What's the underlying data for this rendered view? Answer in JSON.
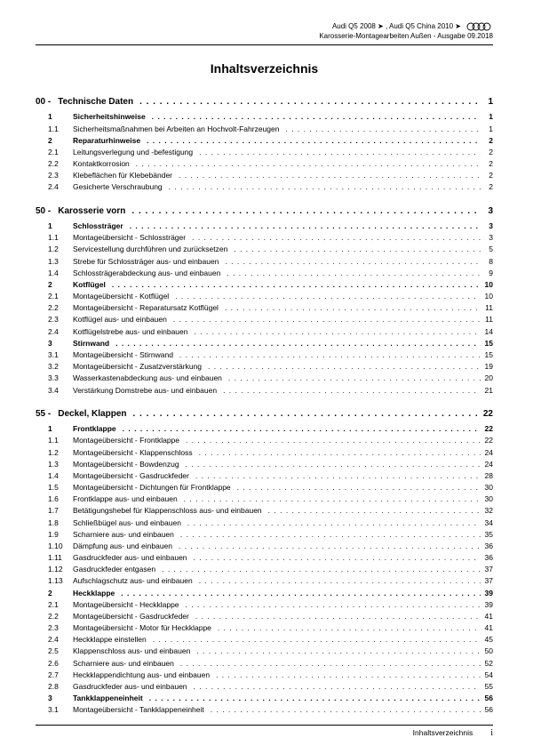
{
  "header": {
    "line1_left": "Audi Q5 2008 ➤ , Audi Q5 China 2010 ➤",
    "line2": "Karosserie-Montagearbeiten Außen - Ausgabe 09.2018"
  },
  "title": "Inhaltsverzeichnis",
  "sections": [
    {
      "num": "00 -",
      "label": "Technische Daten",
      "page": "1",
      "items": [
        {
          "num": "1",
          "label": "Sicherheitshinweise",
          "page": "1",
          "bold": true
        },
        {
          "num": "1.1",
          "label": "Sicherheitsmaßnahmen bei Arbeiten an Hochvolt-Fahrzeugen",
          "page": "1"
        },
        {
          "num": "2",
          "label": "Reparaturhinweise",
          "page": "2",
          "bold": true
        },
        {
          "num": "2.1",
          "label": "Leitungsverlegung und -befestigung",
          "page": "2"
        },
        {
          "num": "2.2",
          "label": "Kontaktkorrosion",
          "page": "2"
        },
        {
          "num": "2.3",
          "label": "Klebeflächen für Klebebänder",
          "page": "2"
        },
        {
          "num": "2.4",
          "label": "Gesicherte Verschraubung",
          "page": "2"
        }
      ]
    },
    {
      "num": "50 -",
      "label": "Karosserie vorn",
      "page": "3",
      "items": [
        {
          "num": "1",
          "label": "Schlossträger",
          "page": "3",
          "bold": true
        },
        {
          "num": "1.1",
          "label": "Montageübersicht - Schlossträger",
          "page": "3"
        },
        {
          "num": "1.2",
          "label": "Servicestellung durchführen und zurücksetzen",
          "page": "5"
        },
        {
          "num": "1.3",
          "label": "Strebe für Schlossträger aus- und einbauen",
          "page": "8"
        },
        {
          "num": "1.4",
          "label": "Schlossträgerabdeckung aus- und einbauen",
          "page": "9"
        },
        {
          "num": "2",
          "label": "Kotflügel",
          "page": "10",
          "bold": true
        },
        {
          "num": "2.1",
          "label": "Montageübersicht - Kotflügel",
          "page": "10"
        },
        {
          "num": "2.2",
          "label": "Montageübersicht - Reparatursatz Kotflügel",
          "page": "11"
        },
        {
          "num": "2.3",
          "label": "Kotflügel aus- und einbauen",
          "page": "11"
        },
        {
          "num": "2.4",
          "label": "Kotflügelstrebe aus- und einbauen",
          "page": "14"
        },
        {
          "num": "3",
          "label": "Stirnwand",
          "page": "15",
          "bold": true
        },
        {
          "num": "3.1",
          "label": "Montageübersicht - Stirnwand",
          "page": "15"
        },
        {
          "num": "3.2",
          "label": "Montageübersicht - Zusatzverstärkung",
          "page": "19"
        },
        {
          "num": "3.3",
          "label": "Wasserkastenabdeckung aus- und einbauen",
          "page": "20"
        },
        {
          "num": "3.4",
          "label": "Verstärkung Domstrebe aus- und einbauen",
          "page": "21"
        }
      ]
    },
    {
      "num": "55 -",
      "label": "Deckel, Klappen",
      "page": "22",
      "items": [
        {
          "num": "1",
          "label": "Frontklappe",
          "page": "22",
          "bold": true
        },
        {
          "num": "1.1",
          "label": "Montageübersicht - Frontklappe",
          "page": "22"
        },
        {
          "num": "1.2",
          "label": "Montageübersicht - Klappenschloss",
          "page": "24"
        },
        {
          "num": "1.3",
          "label": "Montageübersicht - Bowdenzug",
          "page": "24"
        },
        {
          "num": "1.4",
          "label": "Montageübersicht - Gasdruckfeder",
          "page": "28"
        },
        {
          "num": "1.5",
          "label": "Montageübersicht - Dichtungen für Frontklappe",
          "page": "30"
        },
        {
          "num": "1.6",
          "label": "Frontklappe aus- und einbauen",
          "page": "30"
        },
        {
          "num": "1.7",
          "label": "Betätigungshebel für Klappenschloss aus- und einbauen",
          "page": "32"
        },
        {
          "num": "1.8",
          "label": "Schließbügel aus- und einbauen",
          "page": "34"
        },
        {
          "num": "1.9",
          "label": "Scharniere aus- und einbauen",
          "page": "35"
        },
        {
          "num": "1.10",
          "label": "Dämpfung aus- und einbauen",
          "page": "36"
        },
        {
          "num": "1.11",
          "label": "Gasdruckfeder aus- und einbauen",
          "page": "36"
        },
        {
          "num": "1.12",
          "label": "Gasdruckfeder entgasen",
          "page": "37"
        },
        {
          "num": "1.13",
          "label": "Aufschlagschutz aus- und einbauen",
          "page": "37"
        },
        {
          "num": "2",
          "label": "Heckklappe",
          "page": "39",
          "bold": true
        },
        {
          "num": "2.1",
          "label": "Montageübersicht - Heckklappe",
          "page": "39"
        },
        {
          "num": "2.2",
          "label": "Montageübersicht - Gasdruckfeder",
          "page": "41"
        },
        {
          "num": "2.3",
          "label": "Montageübersicht - Motor für Heckklappe",
          "page": "41"
        },
        {
          "num": "2.4",
          "label": "Heckklappe einstellen",
          "page": "45"
        },
        {
          "num": "2.5",
          "label": "Klappenschloss aus- und einbauen",
          "page": "50"
        },
        {
          "num": "2.6",
          "label": "Scharniere aus- und einbauen",
          "page": "52"
        },
        {
          "num": "2.7",
          "label": "Heckklappendichtung aus- und einbauen",
          "page": "54"
        },
        {
          "num": "2.8",
          "label": "Gasdruckfeder aus- und einbauen",
          "page": "55"
        },
        {
          "num": "3",
          "label": "Tankklappeneinheit",
          "page": "56",
          "bold": true
        },
        {
          "num": "3.1",
          "label": "Montageübersicht - Tankklappeneinheit",
          "page": "56"
        }
      ]
    }
  ],
  "footer": {
    "label": "Inhaltsverzeichnis",
    "page": "i"
  },
  "dots": ". . . . . . . . . . . . . . . . . . . . . . . . . . . . . . . . . . . . . . . . . . . . . . . . . . . . . . . . . . . . . . . . . . . . . . . . . . . . . . . . . . . . . . . . . . . . . . . . . . . ."
}
